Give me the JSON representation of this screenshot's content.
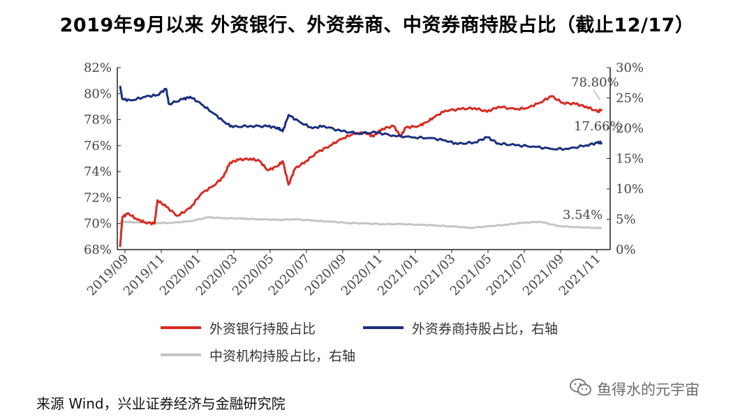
{
  "title": "2019年9月以来 外资银行、外资券商、中资券商持股占比（截止12/17）",
  "source": "来源 Wind，兴业证券经济与金融研究院",
  "watermark": {
    "text": "鱼得水的元宇宙",
    "icon": "wechat-icon"
  },
  "chart_data": {
    "type": "line",
    "x_ticks": [
      "2019/09",
      "2019/11",
      "2020/01",
      "2020/03",
      "2020/05",
      "2020/07",
      "2020/09",
      "2020/11",
      "2021/01",
      "2021/03",
      "2021/05",
      "2021/07",
      "2021/09",
      "2021/11"
    ],
    "y_left": {
      "ticks": [
        "68%",
        "70%",
        "72%",
        "74%",
        "76%",
        "78%",
        "80%",
        "82%"
      ],
      "range": [
        68,
        82
      ]
    },
    "y_right": {
      "ticks": [
        "0%",
        "5%",
        "10%",
        "15%",
        "20%",
        "25%",
        "30%"
      ],
      "range": [
        0,
        30
      ]
    },
    "legend_position": "bottom",
    "grid": false,
    "series": [
      {
        "name": "外资银行持股占比",
        "axis": "left",
        "color": "#d62a20",
        "last_label": "78.80%",
        "points": [
          [
            "2019-09-01",
            68.2
          ],
          [
            "2019-09-05",
            70.5
          ],
          [
            "2019-09-15",
            70.8
          ],
          [
            "2019-10-01",
            70.3
          ],
          [
            "2019-10-15",
            70.1
          ],
          [
            "2019-10-31",
            70.0
          ],
          [
            "2019-11-05",
            71.8
          ],
          [
            "2019-11-20",
            71.3
          ],
          [
            "2019-12-10",
            70.6
          ],
          [
            "2020-01-01",
            71.2
          ],
          [
            "2020-01-20",
            72.3
          ],
          [
            "2020-02-10",
            72.9
          ],
          [
            "2020-02-28",
            73.6
          ],
          [
            "2020-03-10",
            74.7
          ],
          [
            "2020-03-25",
            74.9
          ],
          [
            "2020-04-15",
            75.0
          ],
          [
            "2020-05-01",
            74.8
          ],
          [
            "2020-05-15",
            74.1
          ],
          [
            "2020-05-31",
            74.4
          ],
          [
            "2020-06-10",
            74.8
          ],
          [
            "2020-06-20",
            73.0
          ],
          [
            "2020-07-01",
            74.2
          ],
          [
            "2020-07-20",
            74.8
          ],
          [
            "2020-08-10",
            75.5
          ],
          [
            "2020-08-31",
            76.0
          ],
          [
            "2020-09-20",
            76.5
          ],
          [
            "2020-10-10",
            76.9
          ],
          [
            "2020-10-31",
            77.0
          ],
          [
            "2020-11-15",
            76.7
          ],
          [
            "2020-11-30",
            77.3
          ],
          [
            "2020-12-20",
            77.5
          ],
          [
            "2021-01-01",
            76.7
          ],
          [
            "2021-01-10",
            77.4
          ],
          [
            "2021-02-01",
            77.5
          ],
          [
            "2021-02-15",
            77.8
          ],
          [
            "2021-03-01",
            78.2
          ],
          [
            "2021-03-20",
            78.7
          ],
          [
            "2021-04-15",
            78.8
          ],
          [
            "2021-05-10",
            78.9
          ],
          [
            "2021-05-31",
            78.6
          ],
          [
            "2021-06-20",
            79.0
          ],
          [
            "2021-07-20",
            78.8
          ],
          [
            "2021-08-10",
            78.9
          ],
          [
            "2021-08-31",
            79.3
          ],
          [
            "2021-09-20",
            79.8
          ],
          [
            "2021-10-10",
            79.3
          ],
          [
            "2021-11-01",
            79.2
          ],
          [
            "2021-11-20",
            79.0
          ],
          [
            "2021-12-10",
            78.6
          ],
          [
            "2021-12-17",
            78.8
          ]
        ]
      },
      {
        "name": "外资券商持股占比，右轴",
        "axis": "right",
        "color": "#1a2f7f",
        "last_label": "17.66%",
        "points": [
          [
            "2019-09-01",
            27.0
          ],
          [
            "2019-09-05",
            24.8
          ],
          [
            "2019-09-20",
            24.6
          ],
          [
            "2019-10-15",
            25.2
          ],
          [
            "2019-11-05",
            25.5
          ],
          [
            "2019-11-20",
            26.5
          ],
          [
            "2019-11-25",
            24.0
          ],
          [
            "2019-12-20",
            24.8
          ],
          [
            "2020-01-01",
            25.2
          ],
          [
            "2020-01-20",
            24.0
          ],
          [
            "2020-02-10",
            22.5
          ],
          [
            "2020-03-01",
            21.0
          ],
          [
            "2020-03-15",
            20.2
          ],
          [
            "2020-04-15",
            20.4
          ],
          [
            "2020-05-15",
            20.3
          ],
          [
            "2020-06-01",
            20.1
          ],
          [
            "2020-06-10",
            19.5
          ],
          [
            "2020-06-20",
            22.2
          ],
          [
            "2020-07-10",
            21.0
          ],
          [
            "2020-08-01",
            20.0
          ],
          [
            "2020-08-20",
            20.4
          ],
          [
            "2020-09-20",
            19.5
          ],
          [
            "2020-10-20",
            19.2
          ],
          [
            "2020-11-20",
            19.3
          ],
          [
            "2020-12-20",
            18.8
          ],
          [
            "2021-01-20",
            18.5
          ],
          [
            "2021-02-20",
            18.4
          ],
          [
            "2021-03-20",
            18.0
          ],
          [
            "2021-04-10",
            17.4
          ],
          [
            "2021-05-10",
            17.7
          ],
          [
            "2021-06-01",
            18.5
          ],
          [
            "2021-06-20",
            17.5
          ],
          [
            "2021-07-20",
            17.2
          ],
          [
            "2021-08-20",
            17.0
          ],
          [
            "2021-09-20",
            16.6
          ],
          [
            "2021-10-20",
            16.6
          ],
          [
            "2021-11-20",
            17.2
          ],
          [
            "2021-12-10",
            17.6
          ],
          [
            "2021-12-17",
            17.66
          ]
        ]
      },
      {
        "name": "中资机构持股占比，右轴",
        "axis": "right",
        "color": "#c4c4c4",
        "last_label": "3.54%",
        "points": [
          [
            "2019-09-01",
            4.6
          ],
          [
            "2019-10-01",
            4.5
          ],
          [
            "2019-11-01",
            4.4
          ],
          [
            "2019-12-01",
            4.4
          ],
          [
            "2020-01-01",
            4.7
          ],
          [
            "2020-02-01",
            5.3
          ],
          [
            "2020-03-01",
            5.2
          ],
          [
            "2020-04-01",
            5.1
          ],
          [
            "2020-05-01",
            5.0
          ],
          [
            "2020-06-01",
            4.9
          ],
          [
            "2020-07-01",
            5.0
          ],
          [
            "2020-08-01",
            4.8
          ],
          [
            "2020-09-01",
            4.6
          ],
          [
            "2020-10-01",
            4.4
          ],
          [
            "2020-11-01",
            4.3
          ],
          [
            "2020-12-01",
            4.2
          ],
          [
            "2021-01-01",
            4.2
          ],
          [
            "2021-02-01",
            4.1
          ],
          [
            "2021-03-01",
            4.0
          ],
          [
            "2021-04-01",
            3.8
          ],
          [
            "2021-05-01",
            3.6
          ],
          [
            "2021-06-01",
            3.8
          ],
          [
            "2021-07-01",
            4.1
          ],
          [
            "2021-08-01",
            4.4
          ],
          [
            "2021-09-01",
            4.6
          ],
          [
            "2021-10-01",
            3.9
          ],
          [
            "2021-11-01",
            3.7
          ],
          [
            "2021-12-01",
            3.6
          ],
          [
            "2021-12-17",
            3.54
          ]
        ]
      }
    ]
  }
}
